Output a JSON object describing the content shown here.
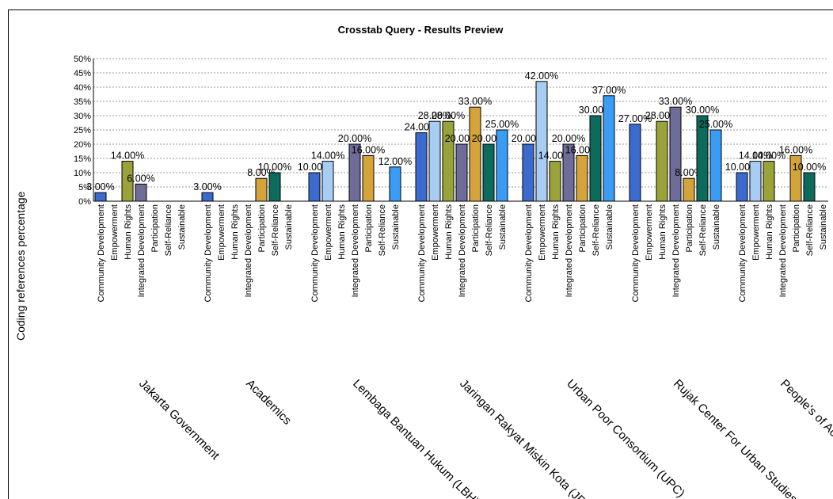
{
  "chart_data": {
    "type": "bar",
    "title": "Crosstab Query - Results Preview",
    "xlabel": "",
    "ylabel": "Coding references percentage",
    "ylim": [
      0,
      50
    ],
    "yticks": [
      "0%",
      "5%",
      "10%",
      "15%",
      "20%",
      "25%",
      "30%",
      "35%",
      "40%",
      "45%",
      "50%"
    ],
    "grid": true,
    "categories": [
      "Community Development",
      "Empowerment",
      "Human Rights",
      "Integrated Development",
      "Participation",
      "Self-Reliance",
      "Sustainable"
    ],
    "category_colors": [
      "#3c6bcf",
      "#a8cdf3",
      "#99a33a",
      "#6e6c98",
      "#d4a43a",
      "#0d6b5e",
      "#3a9cf5"
    ],
    "groups": [
      {
        "name": "Jakarta Government",
        "values": [
          3,
          null,
          14,
          6,
          null,
          null,
          null
        ],
        "labels": [
          "3.00%",
          "",
          "14.00%",
          "6.00%",
          "",
          "",
          ""
        ]
      },
      {
        "name": "Academics",
        "values": [
          3,
          null,
          null,
          null,
          8,
          10,
          null
        ],
        "labels": [
          "3.00%",
          "",
          "",
          "",
          "8.00%",
          "10.00%",
          ""
        ]
      },
      {
        "name": "Lembaga Bantuan Hukum (LBH)",
        "values": [
          10,
          14,
          null,
          20,
          16,
          null,
          12
        ],
        "labels": [
          "10.00%",
          "14.00%",
          "",
          "20.00%",
          "16.00%",
          "",
          "12.00%"
        ]
      },
      {
        "name": "Jaringan Rakyat Miskin Kota (JRMK)",
        "values": [
          24,
          28,
          28,
          20,
          33,
          20,
          25
        ],
        "labels": [
          "24.00%",
          "28.00%",
          "28.00%",
          "20.00%",
          "33.00%",
          "20.00%",
          "25.00%"
        ]
      },
      {
        "name": "Urban Poor Consortium (UPC)",
        "values": [
          20,
          42,
          14,
          20,
          16,
          30,
          37
        ],
        "labels": [
          "20.00%",
          "42.00%",
          "14.00%",
          "20.00%",
          "16.00%",
          "30.00%",
          "37.00%"
        ]
      },
      {
        "name": "Rujak Center For Urban Studies",
        "values": [
          27,
          null,
          28,
          33,
          8,
          30,
          25
        ],
        "labels": [
          "27.00%",
          "",
          "28.00%",
          "33.00%",
          "8.00%",
          "30.00%",
          "25.00%"
        ]
      },
      {
        "name": "People's of Aceh",
        "values": [
          10,
          14,
          14,
          null,
          16,
          10,
          null
        ],
        "labels": [
          "10.00%",
          "14.00%",
          "14.00%",
          "",
          "16.00%",
          "10.00%",
          ""
        ]
      }
    ]
  }
}
